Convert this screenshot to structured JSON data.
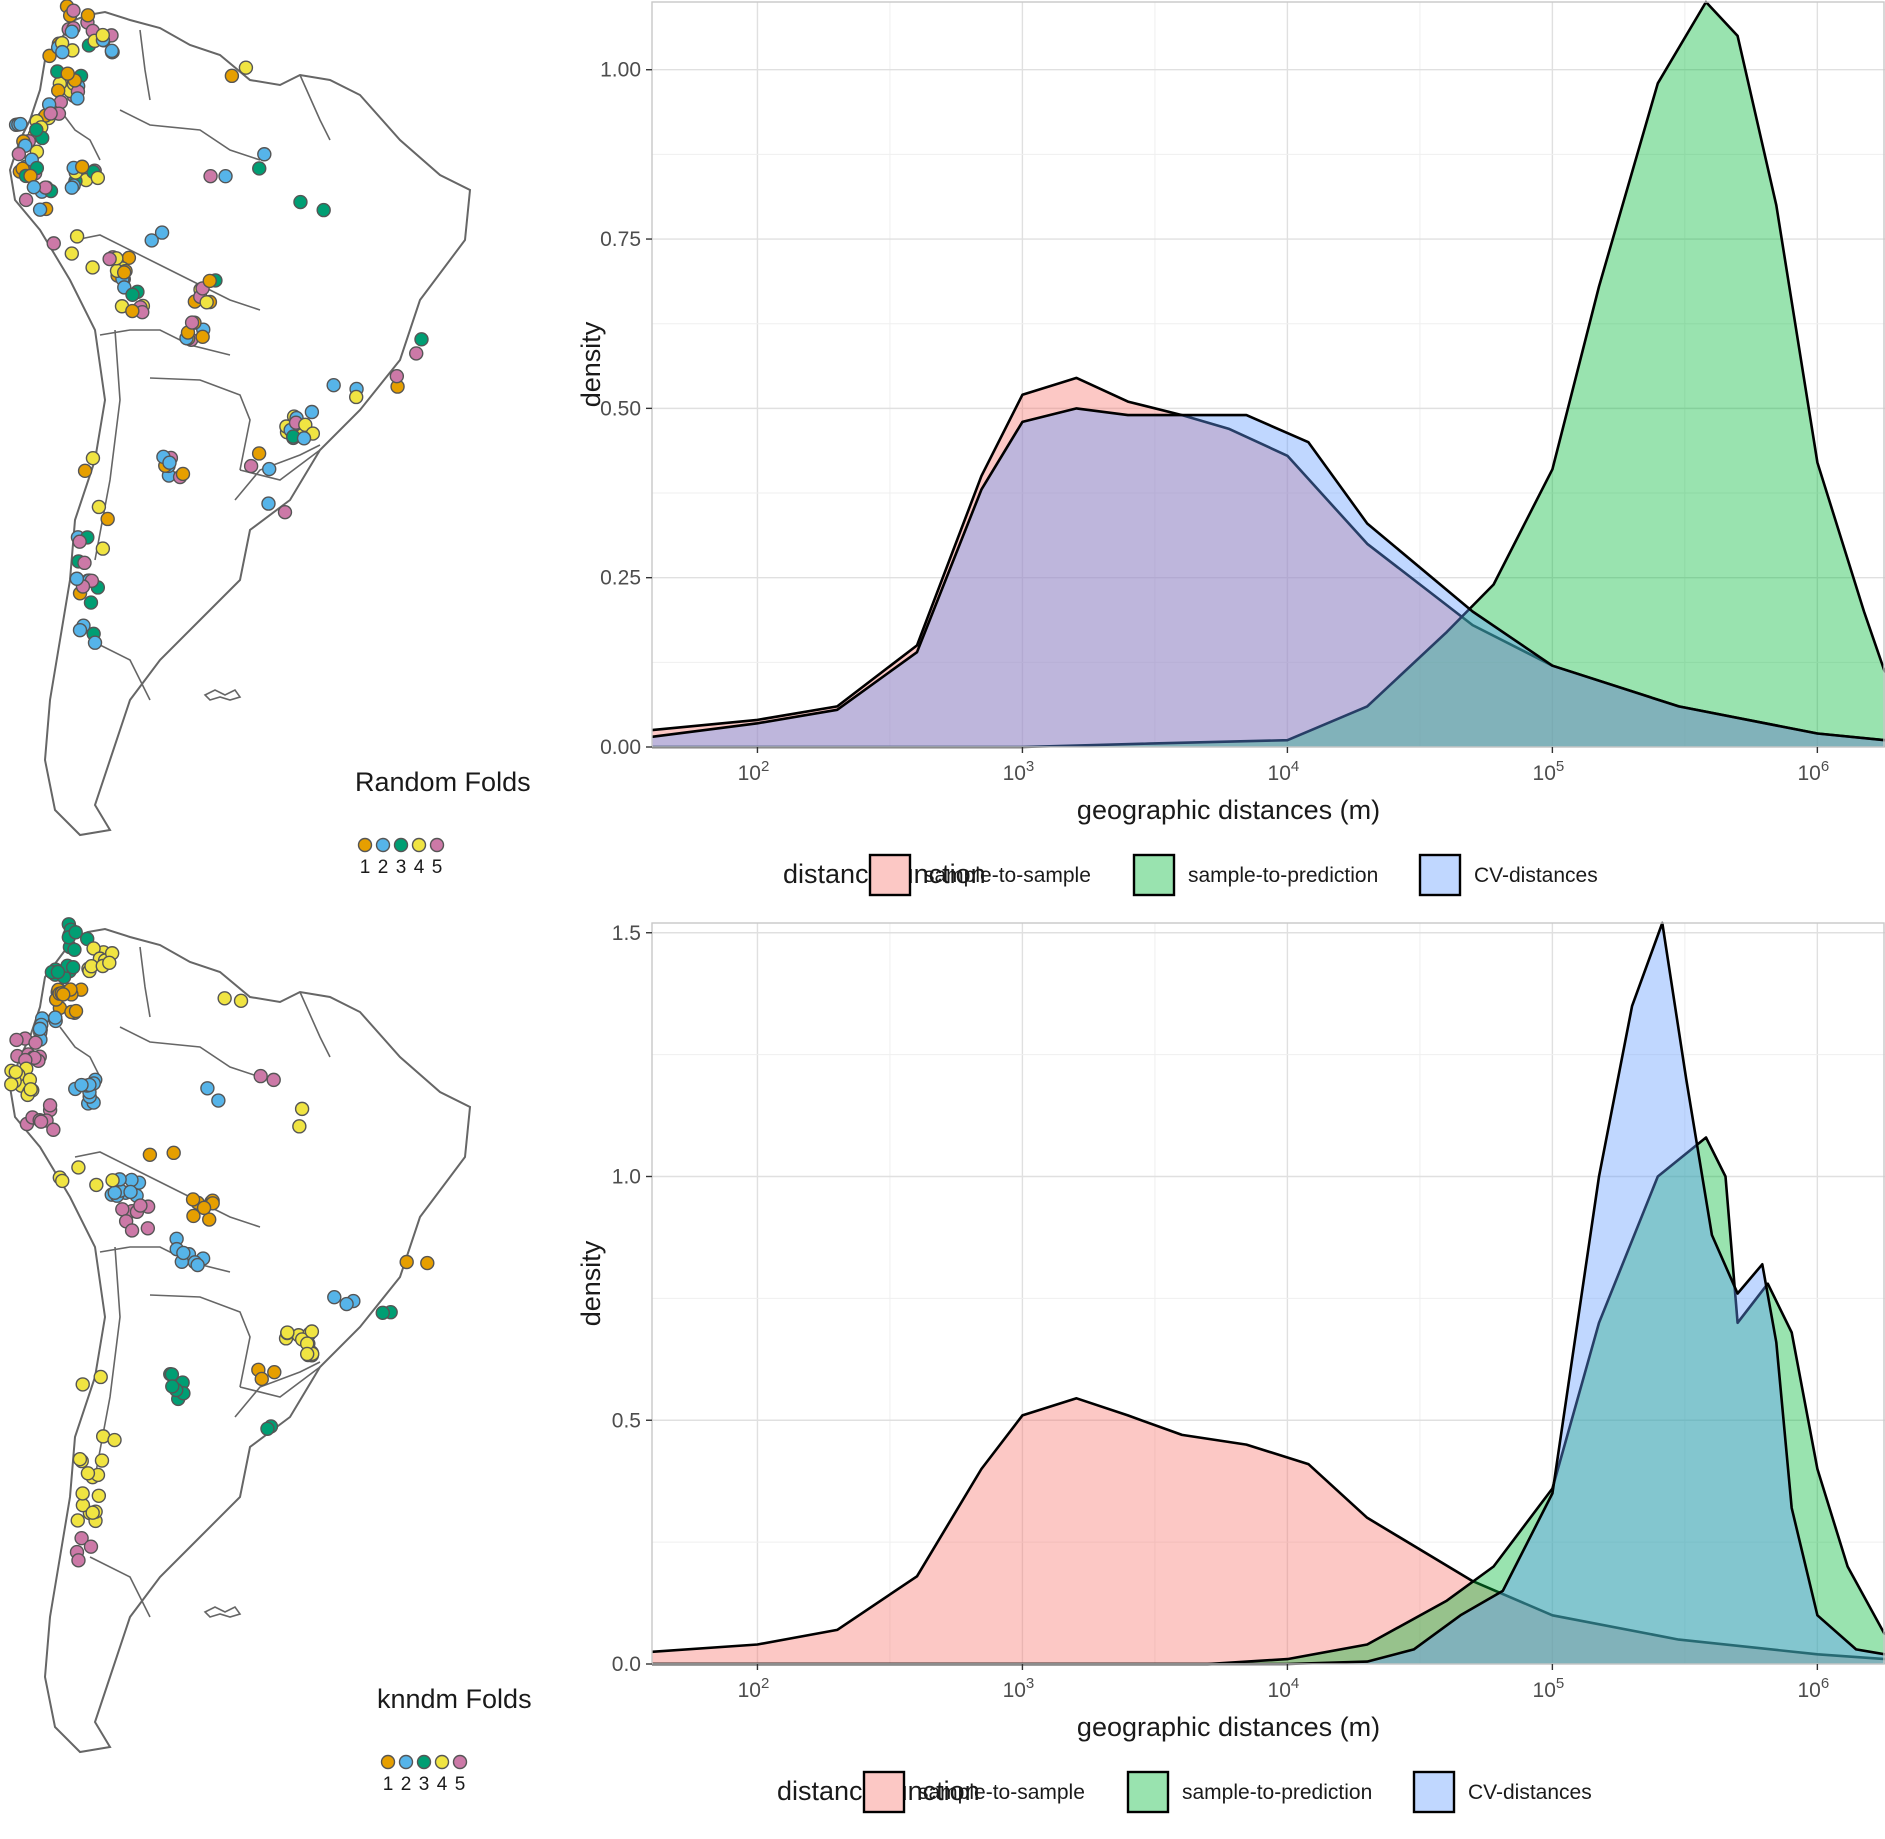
{
  "colors": {
    "fold_1": "#E69F00",
    "fold_2": "#56B4E9",
    "fold_3": "#009E73",
    "fold_4": "#F0E442",
    "fold_5": "#CC79A7",
    "sample_to_sample": "#F8766D",
    "sample_to_prediction": "#00BA38",
    "cv_distances": "#619CFF",
    "map_outline": "#666666"
  },
  "legend": {
    "title": "distance function",
    "items": [
      "sample-to-sample",
      "sample-to-prediction",
      "CV-distances"
    ]
  },
  "maps": [
    {
      "title": "Random Folds",
      "fold_labels": [
        "1",
        "2",
        "3",
        "4",
        "5"
      ],
      "icon": "south-america-map"
    },
    {
      "title": "knndm Folds",
      "fold_labels": [
        "1",
        "2",
        "3",
        "4",
        "5"
      ],
      "icon": "south-america-map"
    }
  ],
  "chart_data": [
    {
      "type": "area",
      "title": "",
      "xlabel": "geographic distances (m)",
      "ylabel": "density",
      "xscale": "log10",
      "xlim": [
        40,
        1800000
      ],
      "ylim": [
        0,
        1.1
      ],
      "x_ticks": [
        "10^2",
        "10^3",
        "10^4",
        "10^5",
        "10^6"
      ],
      "y_ticks": [
        "0.00",
        "0.25",
        "0.50",
        "0.75",
        "1.00"
      ],
      "grid": true,
      "legend_position": "bottom",
      "series": [
        {
          "name": "sample-to-sample",
          "x": [
            40,
            100,
            200,
            400,
            700,
            1000,
            1600,
            2500,
            4000,
            6000,
            10000,
            20000,
            50000,
            100000,
            300000,
            1000000,
            1800000
          ],
          "y": [
            0.025,
            0.04,
            0.06,
            0.15,
            0.4,
            0.52,
            0.545,
            0.51,
            0.49,
            0.47,
            0.43,
            0.3,
            0.18,
            0.12,
            0.06,
            0.02,
            0.01
          ]
        },
        {
          "name": "sample-to-prediction",
          "x": [
            40,
            1000,
            3000,
            10000,
            20000,
            40000,
            60000,
            100000,
            150000,
            250000,
            380000,
            500000,
            700000,
            1000000,
            1500000,
            1800000
          ],
          "y": [
            0,
            0,
            0.005,
            0.01,
            0.06,
            0.17,
            0.24,
            0.41,
            0.68,
            0.98,
            1.1,
            1.05,
            0.8,
            0.42,
            0.2,
            0.11
          ]
        },
        {
          "name": "CV-distances",
          "x": [
            40,
            100,
            200,
            400,
            700,
            1000,
            1600,
            2500,
            4000,
            7000,
            12000,
            20000,
            50000,
            100000,
            300000,
            1000000,
            1800000
          ],
          "y": [
            0.015,
            0.035,
            0.055,
            0.14,
            0.38,
            0.48,
            0.5,
            0.49,
            0.49,
            0.49,
            0.45,
            0.33,
            0.2,
            0.12,
            0.06,
            0.02,
            0.01
          ]
        }
      ]
    },
    {
      "type": "area",
      "title": "",
      "xlabel": "geographic distances (m)",
      "ylabel": "density",
      "xscale": "log10",
      "xlim": [
        40,
        1800000
      ],
      "ylim": [
        0,
        1.52
      ],
      "x_ticks": [
        "10^2",
        "10^3",
        "10^4",
        "10^5",
        "10^6"
      ],
      "y_ticks": [
        "0.0",
        "0.5",
        "1.0",
        "1.5"
      ],
      "grid": true,
      "legend_position": "bottom",
      "series": [
        {
          "name": "sample-to-sample",
          "x": [
            40,
            100,
            200,
            400,
            700,
            1000,
            1600,
            2500,
            4000,
            7000,
            12000,
            20000,
            50000,
            100000,
            300000,
            1000000,
            1800000
          ],
          "y": [
            0.025,
            0.04,
            0.07,
            0.18,
            0.4,
            0.51,
            0.545,
            0.51,
            0.47,
            0.45,
            0.41,
            0.3,
            0.17,
            0.1,
            0.05,
            0.02,
            0.01
          ]
        },
        {
          "name": "sample-to-prediction",
          "x": [
            40,
            5000,
            10000,
            20000,
            40000,
            60000,
            100000,
            150000,
            250000,
            380000,
            450000,
            500000,
            650000,
            800000,
            1000000,
            1300000,
            1800000
          ],
          "y": [
            0,
            0,
            0.01,
            0.04,
            0.13,
            0.2,
            0.36,
            0.7,
            1.0,
            1.08,
            1.0,
            0.7,
            0.78,
            0.68,
            0.4,
            0.2,
            0.06
          ]
        },
        {
          "name": "CV-distances",
          "x": [
            40,
            10000,
            20000,
            30000,
            45000,
            65000,
            100000,
            150000,
            200000,
            260000,
            320000,
            400000,
            500000,
            620000,
            700000,
            800000,
            1000000,
            1400000,
            1800000
          ],
          "y": [
            0,
            0,
            0.005,
            0.03,
            0.1,
            0.15,
            0.35,
            1.0,
            1.35,
            1.52,
            1.2,
            0.88,
            0.76,
            0.82,
            0.66,
            0.32,
            0.1,
            0.03,
            0.02
          ]
        }
      ]
    }
  ]
}
